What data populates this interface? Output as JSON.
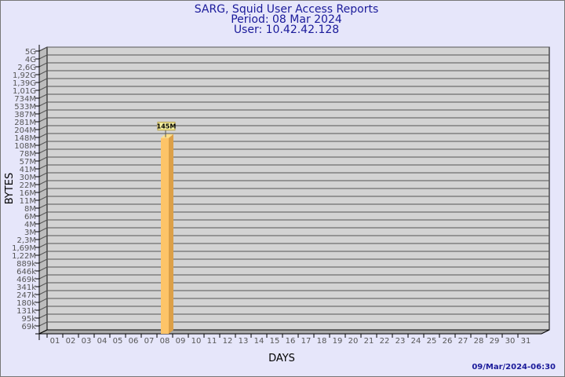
{
  "chart_data": {
    "type": "bar",
    "title_lines": [
      "SARG, Squid User Access Reports",
      "Period: 08 Mar 2024",
      "User: 10.42.42.128"
    ],
    "xlabel": "DAYS",
    "ylabel": "BYTES",
    "y_scale": "log",
    "y_ticks": [
      "5G",
      "4G",
      "2,6G",
      "1,92G",
      "1,39G",
      "1,01G",
      "734M",
      "533M",
      "387M",
      "281M",
      "204M",
      "148M",
      "108M",
      "78M",
      "57M",
      "41M",
      "30M",
      "22M",
      "16M",
      "11M",
      "8M",
      "6M",
      "4M",
      "3M",
      "2,3M",
      "1,69M",
      "1,22M",
      "889k",
      "646k",
      "469k",
      "341k",
      "247k",
      "180k",
      "131k",
      "95k",
      "69k"
    ],
    "categories": [
      "01",
      "02",
      "03",
      "04",
      "05",
      "06",
      "07",
      "08",
      "09",
      "10",
      "11",
      "12",
      "13",
      "14",
      "15",
      "16",
      "17",
      "18",
      "19",
      "20",
      "21",
      "22",
      "23",
      "24",
      "25",
      "26",
      "27",
      "28",
      "29",
      "30",
      "31"
    ],
    "bars": [
      {
        "category": "08",
        "value_label": "145M",
        "value": 145000000
      }
    ],
    "grid": true,
    "colors": {
      "background": "#e6e6fa",
      "plot": "#d3d3d3",
      "bar_front": "#fdc468",
      "bar_side": "#dca048",
      "bar_top": "#fde08c",
      "title": "#1a1a9a"
    }
  },
  "footer": {
    "timestamp": "09/Mar/2024-06:30"
  }
}
